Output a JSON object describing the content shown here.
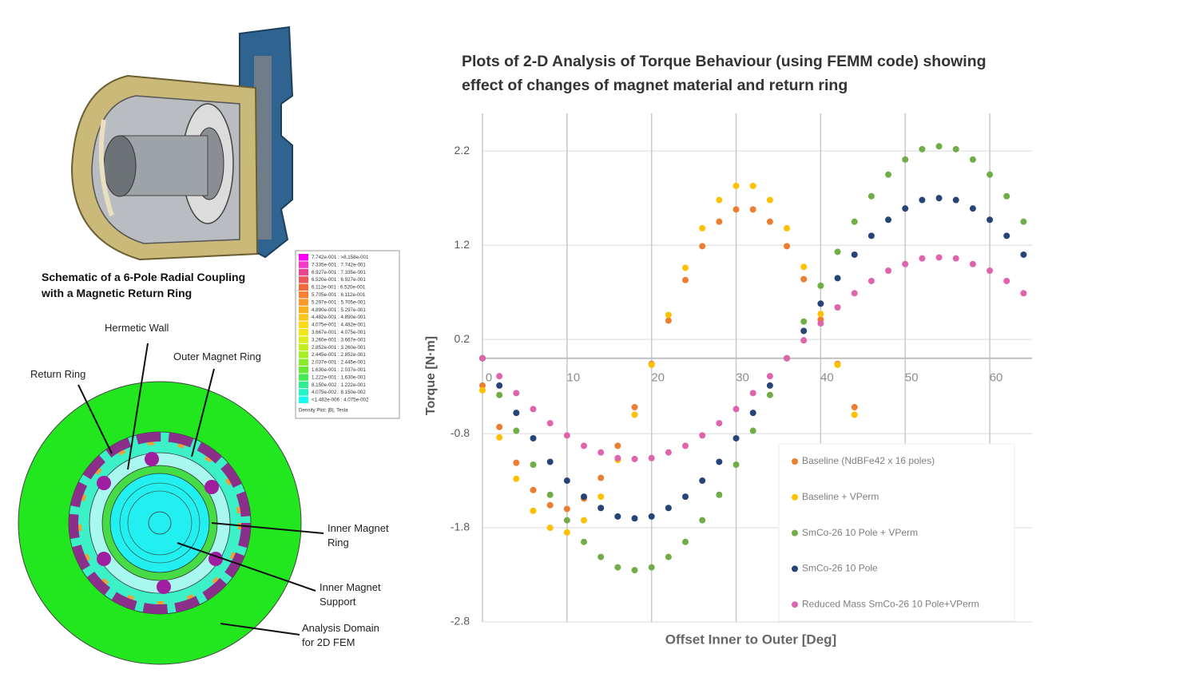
{
  "chart_data": {
    "type": "scatter",
    "title": [
      "Plots of 2-D Analysis of Torque Behaviour (using FEMM code) showing",
      "effect of changes of magnet material and return ring"
    ],
    "x_label": "Offset Inner to Outer [Deg]",
    "y_label": "Torque [N·m]",
    "xlim": [
      0,
      65
    ],
    "xticks": [
      0,
      10,
      20,
      30,
      40,
      50,
      60
    ],
    "ylim": [
      -2.8,
      2.6
    ],
    "yticks": [
      -2.8,
      -1.8,
      -0.8,
      0.2,
      1.2,
      2.2
    ],
    "grid": true,
    "legend": "lower right",
    "series": [
      {
        "name": "Baseline (NdBFe42 x 16 poles)",
        "color": "#ed7d31",
        "x": [
          0,
          2,
          4,
          6,
          8,
          10,
          12,
          14,
          16,
          18,
          20,
          22,
          24,
          26,
          28,
          30,
          32,
          34,
          36,
          38,
          40,
          42,
          44
        ],
        "values": [
          -0.29,
          -0.73,
          -1.11,
          -1.4,
          -1.56,
          -1.6,
          -1.49,
          -1.27,
          -0.93,
          -0.52,
          -0.06,
          0.4,
          0.83,
          1.19,
          1.45,
          1.58,
          1.58,
          1.45,
          1.19,
          0.84,
          0.41,
          -0.06,
          -0.52
        ]
      },
      {
        "name": "Baseline + VPerm",
        "color": "#ffc000",
        "x": [
          0,
          2,
          4,
          6,
          8,
          10,
          12,
          14,
          16,
          18,
          20,
          22,
          24,
          26,
          28,
          30,
          32,
          34,
          36,
          38,
          40,
          42,
          44
        ],
        "values": [
          -0.34,
          -0.84,
          -1.28,
          -1.62,
          -1.8,
          -1.85,
          -1.72,
          -1.47,
          -1.08,
          -0.6,
          -0.07,
          0.46,
          0.96,
          1.38,
          1.68,
          1.83,
          1.83,
          1.68,
          1.38,
          0.97,
          0.47,
          -0.07,
          -0.6
        ]
      },
      {
        "name": "SmCo-26 10 Pole + VPerm",
        "color": "#70ad47",
        "x": [
          0,
          2,
          4,
          6,
          8,
          10,
          12,
          14,
          16,
          18,
          20,
          22,
          24,
          26,
          28,
          30,
          32,
          34,
          36,
          38,
          40,
          42,
          44,
          46,
          48,
          50,
          52,
          54,
          56,
          58,
          60,
          62,
          64
        ],
        "values": [
          0,
          -0.39,
          -0.77,
          -1.13,
          -1.45,
          -1.72,
          -1.95,
          -2.11,
          -2.22,
          -2.25,
          -2.22,
          -2.11,
          -1.95,
          -1.72,
          -1.45,
          -1.13,
          -0.77,
          -0.39,
          0,
          0.39,
          0.77,
          1.13,
          1.45,
          1.72,
          1.95,
          2.11,
          2.22,
          2.25,
          2.22,
          2.11,
          1.95,
          1.72,
          1.45
        ]
      },
      {
        "name": "SmCo-26 10 Pole",
        "color": "#264478",
        "x": [
          0,
          2,
          4,
          6,
          8,
          10,
          12,
          14,
          16,
          18,
          20,
          22,
          24,
          26,
          28,
          30,
          32,
          34,
          36,
          38,
          40,
          42,
          44,
          46,
          48,
          50,
          52,
          54,
          56,
          58,
          60,
          62,
          64
        ],
        "values": [
          0,
          -0.29,
          -0.58,
          -0.85,
          -1.1,
          -1.3,
          -1.47,
          -1.59,
          -1.68,
          -1.7,
          -1.68,
          -1.59,
          -1.47,
          -1.3,
          -1.1,
          -0.85,
          -0.58,
          -0.29,
          0,
          0.29,
          0.58,
          0.85,
          1.1,
          1.3,
          1.47,
          1.59,
          1.68,
          1.7,
          1.68,
          1.59,
          1.47,
          1.3,
          1.1
        ]
      },
      {
        "name": "Reduced Mass SmCo-26 10 Pole+VPerm",
        "color": "#de64ad",
        "x": [
          0,
          2,
          4,
          6,
          8,
          10,
          12,
          14,
          16,
          18,
          20,
          22,
          24,
          26,
          28,
          30,
          32,
          34,
          36,
          38,
          40,
          42,
          44,
          46,
          48,
          50,
          52,
          54,
          56,
          58,
          60,
          62,
          64
        ],
        "values": [
          0,
          -0.19,
          -0.37,
          -0.54,
          -0.69,
          -0.82,
          -0.93,
          -1.0,
          -1.06,
          -1.07,
          -1.06,
          -1.0,
          -0.93,
          -0.82,
          -0.69,
          -0.54,
          -0.37,
          -0.19,
          0,
          0.19,
          0.37,
          0.54,
          0.69,
          0.82,
          0.93,
          1.0,
          1.06,
          1.07,
          1.06,
          1.0,
          0.93,
          0.82,
          0.69
        ]
      }
    ]
  },
  "schematic": {
    "caption": [
      "Schematic of a 6-Pole Radial Coupling",
      "with a Magnetic Return Ring"
    ],
    "labels": {
      "hermetic_wall": [
        "Hermetic Wall"
      ],
      "outer_magnet_ring": [
        "Outer Magnet Ring"
      ],
      "return_ring": [
        "Return Ring"
      ],
      "inner_magnet_ring": [
        "Inner Magnet",
        "Ring"
      ],
      "inner_magnet_support": [
        "Inner Magnet",
        "Support"
      ],
      "analysis_domain": [
        "Analysis Domain",
        "for 2D FEM"
      ]
    }
  },
  "density_legend": {
    "rows": [
      {
        "label": "7.742e-001 : >8.158e-001",
        "color": "#ff00ff"
      },
      {
        "label": "7.335e-001 : 7.742e-001",
        "color": "#f23cc8"
      },
      {
        "label": "6.927e-001 : 7.335e-001",
        "color": "#e8478f"
      },
      {
        "label": "6.520e-001 : 6.927e-001",
        "color": "#e85a5a"
      },
      {
        "label": "6.112e-001 : 6.520e-001",
        "color": "#f06a3c"
      },
      {
        "label": "5.705e-001 : 6.112e-001",
        "color": "#f58232"
      },
      {
        "label": "5.297e-001 : 5.705e-001",
        "color": "#f99a2a"
      },
      {
        "label": "4.890e-001 : 5.297e-001",
        "color": "#fbb024"
      },
      {
        "label": "4.482e-001 : 4.890e-001",
        "color": "#fdc41e"
      },
      {
        "label": "4.075e-001 : 4.482e-001",
        "color": "#ffd81a"
      },
      {
        "label": "3.667e-001 : 4.075e-001",
        "color": "#f2e61a"
      },
      {
        "label": "3.260e-001 : 3.667e-001",
        "color": "#dcec1e"
      },
      {
        "label": "2.852e-001 : 3.260e-001",
        "color": "#c2ee22"
      },
      {
        "label": "2.445e-001 : 2.852e-001",
        "color": "#a6ee26"
      },
      {
        "label": "2.037e-001 : 2.445e-001",
        "color": "#88ec2c"
      },
      {
        "label": "1.630e-001 : 2.037e-001",
        "color": "#66ea34"
      },
      {
        "label": "1.222e-001 : 1.630e-001",
        "color": "#46ea52"
      },
      {
        "label": "8.150e-002 : 1.222e-001",
        "color": "#30ee90"
      },
      {
        "label": "4.075e-002 : 8.150e-002",
        "color": "#24f2c8"
      },
      {
        "label": "<1.482e-006 : 4.075e-002",
        "color": "#18f8f4"
      }
    ],
    "footer": "Density Plot: |B|, Tesla"
  }
}
